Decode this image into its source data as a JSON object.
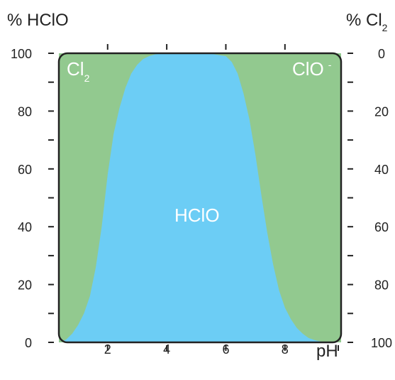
{
  "chart_data": {
    "type": "area",
    "left_axis_title": "% HClO",
    "right_axis_title_main": "% Cl",
    "right_axis_title_sub": "2",
    "xlabel": "pH",
    "x_ticks": [
      2,
      4,
      6,
      8
    ],
    "x_range": [
      0.35,
      9.9
    ],
    "left_y_ticks": [
      0,
      20,
      40,
      60,
      80,
      100
    ],
    "right_y_ticks": [
      100,
      80,
      60,
      40,
      20,
      0
    ],
    "ylim": [
      0,
      100
    ],
    "regions": [
      {
        "name": "Cl",
        "subscript": "2",
        "color": "#92c98f"
      },
      {
        "name": "HClO",
        "subscript": "",
        "color": "#6ccdf5"
      },
      {
        "name": "ClO",
        "superscript": "-",
        "color": "#92c98f"
      }
    ],
    "hclo_curve": {
      "x": [
        0.4,
        0.6,
        0.8,
        1.0,
        1.2,
        1.4,
        1.6,
        1.8,
        2.0,
        2.2,
        2.4,
        2.6,
        2.8,
        3.0,
        3.2,
        3.4,
        3.6,
        3.8,
        4.0,
        4.5,
        5.0,
        5.5,
        6.0,
        6.2,
        6.4,
        6.6,
        6.8,
        7.0,
        7.2,
        7.4,
        7.6,
        7.8,
        8.0,
        8.2,
        8.4,
        8.6,
        8.8,
        9.0,
        9.2,
        9.4,
        9.6
      ],
      "y": [
        0,
        1,
        3,
        6,
        10,
        16,
        26,
        40,
        58,
        72,
        81,
        88,
        93,
        96,
        98,
        99,
        99.6,
        99.9,
        100,
        100,
        100,
        99.8,
        99,
        97,
        93,
        86,
        77,
        65,
        51,
        38,
        27,
        18,
        12,
        8,
        5,
        3,
        1.5,
        0.8,
        0.3,
        0.1,
        0
      ]
    }
  }
}
